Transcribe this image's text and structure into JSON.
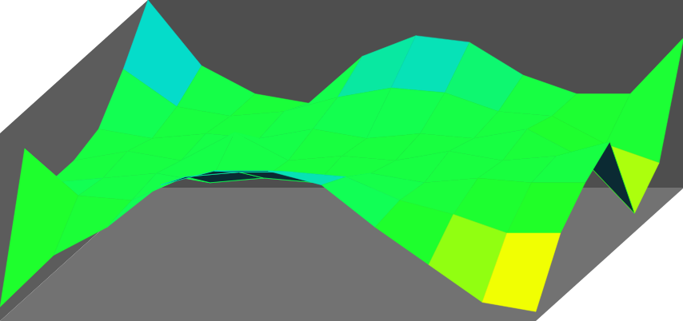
{
  "chart_data": {
    "type": "surface",
    "x": [
      0,
      1,
      2,
      3,
      4,
      5,
      6,
      7,
      8,
      9,
      10
    ],
    "y": [
      0,
      1,
      2,
      3,
      4,
      5,
      6
    ],
    "z": [
      [
        -0.85,
        -0.3,
        0.0,
        0.45,
        0.6,
        0.6,
        0.45,
        0.0,
        -0.4,
        -0.8,
        -0.9
      ],
      [
        0.6,
        0.1,
        0.05,
        0.3,
        0.35,
        0.35,
        0.3,
        0.05,
        -0.1,
        -0.3,
        -0.3
      ],
      [
        0.0,
        0.05,
        0.1,
        0.0,
        0.05,
        0.0,
        0.1,
        0.0,
        0.05,
        0.0,
        0.0
      ],
      [
        0.0,
        0.1,
        0.0,
        0.3,
        0.0,
        0.05,
        0.0,
        0.1,
        0.0,
        0.05,
        0.2
      ],
      [
        0.1,
        0.0,
        0.05,
        0.0,
        0.1,
        0.0,
        0.05,
        0.0,
        0.1,
        -0.2,
        -0.8
      ],
      [
        0.5,
        0.1,
        0.0,
        0.05,
        0.2,
        0.3,
        0.25,
        0.05,
        0.0,
        -0.3,
        -0.5
      ],
      [
        1.0,
        0.3,
        0.0,
        -0.1,
        0.4,
        0.62,
        0.55,
        0.2,
        0.0,
        0.0,
        0.6
      ]
    ],
    "xlim": [
      0,
      10
    ],
    "ylim": [
      0,
      6
    ],
    "zlim": [
      -1,
      1
    ],
    "tick_labels": false,
    "grid": false
  }
}
